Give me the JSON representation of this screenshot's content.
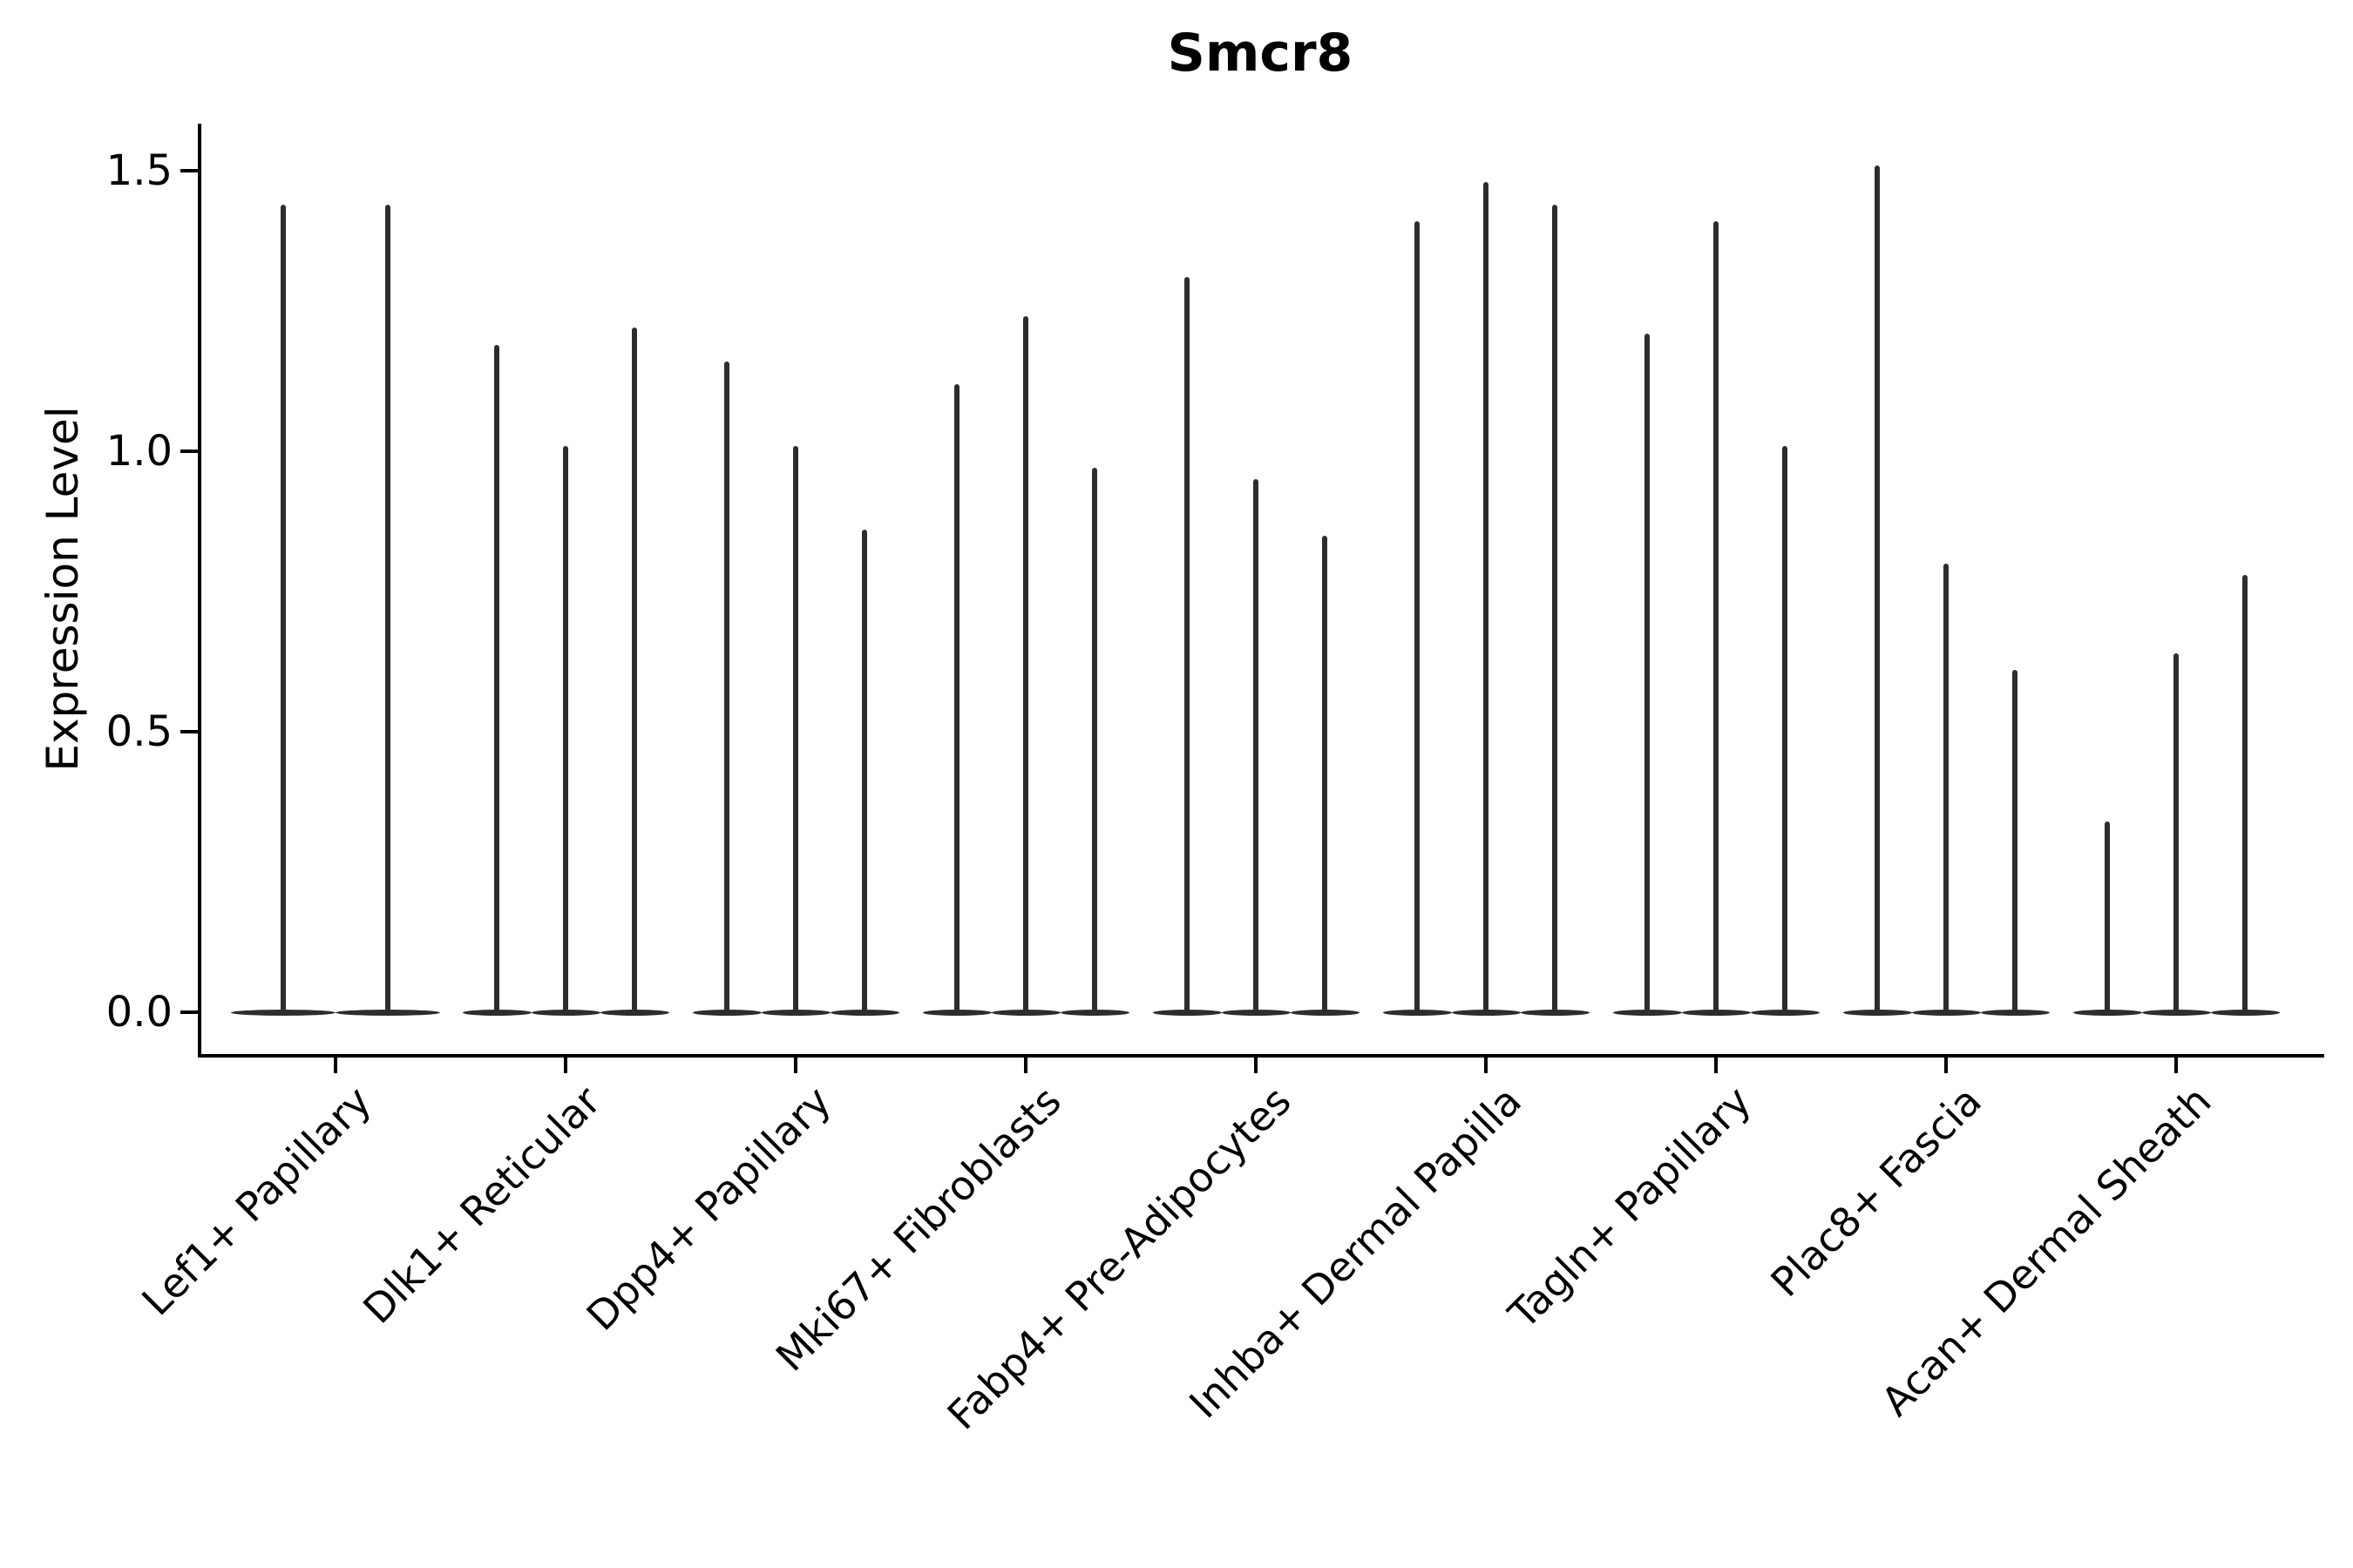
{
  "chart_data": {
    "type": "violin",
    "title": "Smcr8",
    "xlabel": "",
    "ylabel": "Expression Level",
    "ylim": [
      0,
      1.55
    ],
    "yticks": [
      0.0,
      0.5,
      1.0,
      1.5
    ],
    "ytick_labels": [
      "0.0",
      "0.5",
      "1.0",
      "1.5"
    ],
    "grid": false,
    "legend": "none",
    "x_label_rotation_deg": 45,
    "violin_style": "thin-spike-violins-with-flat-base-at-zero",
    "baseline_value": 0.0,
    "categories": [
      "Lef1+ Papillary",
      "Dlk1+ Reticular",
      "Dpp4+ Papillary",
      "Mki67+ Fibroblasts",
      "Fabp4+ Pre-Adipocytes",
      "Inhba+ Dermal Papilla",
      "Tagln+ Papillary",
      "Plac8+ Fascia",
      "Acan+ Dermal Sheath"
    ],
    "series": [
      {
        "name": "Lef1+ Papillary",
        "violin_maxima": [
          1.44,
          1.44
        ]
      },
      {
        "name": "Dlk1+ Reticular",
        "violin_maxima": [
          1.19,
          1.01,
          1.22
        ]
      },
      {
        "name": "Dpp4+ Papillary",
        "violin_maxima": [
          1.16,
          1.01,
          0.86
        ]
      },
      {
        "name": "Mki67+ Fibroblasts",
        "violin_maxima": [
          1.12,
          1.24,
          0.97
        ]
      },
      {
        "name": "Fabp4+ Pre-Adipocytes",
        "violin_maxima": [
          1.31,
          0.95,
          0.85
        ]
      },
      {
        "name": "Inhba+ Dermal Papilla",
        "violin_maxima": [
          1.41,
          1.48,
          1.44
        ]
      },
      {
        "name": "Tagln+ Papillary",
        "violin_maxima": [
          1.21,
          1.41,
          1.01
        ]
      },
      {
        "name": "Plac8+ Fascia",
        "violin_maxima": [
          1.51,
          0.8,
          0.61
        ]
      },
      {
        "name": "Acan+ Dermal Sheath",
        "violin_maxima": [
          0.34,
          0.64,
          0.78
        ]
      }
    ],
    "colors": {
      "violin": "#2d2d2d",
      "axis": "#000000",
      "text": "#000000",
      "background": "#ffffff"
    }
  }
}
